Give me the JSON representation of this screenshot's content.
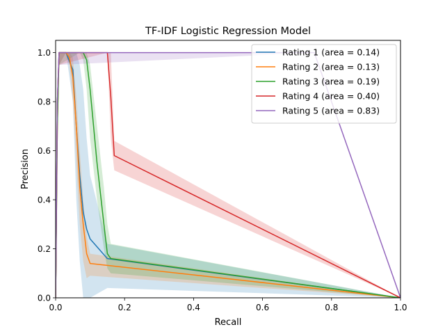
{
  "chart_data": {
    "type": "line",
    "title": "TF-IDF Logistic Regression Model",
    "xlabel": "Recall",
    "ylabel": "Precision",
    "xlim": [
      0.0,
      1.0
    ],
    "ylim": [
      0.0,
      1.05
    ],
    "xticks": [
      "0.0",
      "0.2",
      "0.4",
      "0.6",
      "0.8",
      "1.0"
    ],
    "yticks": [
      "0.0",
      "0.2",
      "0.4",
      "0.6",
      "0.8",
      "1.0"
    ],
    "grid": false,
    "legend_position": "top-right",
    "series": [
      {
        "name": "Rating 1 (area = 0.14)",
        "color": "#1f77b4",
        "x": [
          0.0,
          0.005,
          0.01,
          0.03,
          0.05,
          0.06,
          0.07,
          0.08,
          0.09,
          0.1,
          0.15,
          1.0
        ],
        "y": [
          0.0,
          0.8,
          1.0,
          1.0,
          0.93,
          0.7,
          0.5,
          0.35,
          0.28,
          0.24,
          0.16,
          0.0
        ],
        "band_upper": [
          0.0,
          0.85,
          1.0,
          1.0,
          1.0,
          1.0,
          0.95,
          0.85,
          0.65,
          0.5,
          0.22,
          0.0
        ],
        "band_lower": [
          0.0,
          0.6,
          0.95,
          1.0,
          0.8,
          0.4,
          0.15,
          0.0,
          0.0,
          0.0,
          0.04,
          0.0
        ]
      },
      {
        "name": "Rating 2 (area = 0.13)",
        "color": "#ff7f0e",
        "x": [
          0.0,
          0.005,
          0.01,
          0.03,
          0.04,
          0.05,
          0.06,
          0.07,
          0.08,
          0.09,
          0.1,
          1.0
        ],
        "y": [
          0.0,
          0.7,
          1.0,
          1.0,
          0.98,
          0.9,
          0.7,
          0.45,
          0.3,
          0.18,
          0.14,
          0.0
        ],
        "band_upper": [
          0.0,
          0.75,
          1.0,
          1.0,
          1.0,
          0.98,
          0.82,
          0.6,
          0.4,
          0.25,
          0.18,
          0.0
        ],
        "band_lower": [
          0.0,
          0.6,
          0.95,
          1.0,
          0.95,
          0.8,
          0.55,
          0.3,
          0.15,
          0.08,
          0.09,
          0.0
        ]
      },
      {
        "name": "Rating 3 (area = 0.19)",
        "color": "#2ca02c",
        "x": [
          0.0,
          0.005,
          0.01,
          0.07,
          0.08,
          0.09,
          0.1,
          0.12,
          0.14,
          0.15,
          0.16,
          1.0
        ],
        "y": [
          0.0,
          0.7,
          1.0,
          1.0,
          1.0,
          0.97,
          0.85,
          0.55,
          0.3,
          0.18,
          0.16,
          0.0
        ],
        "band_upper": [
          0.0,
          0.75,
          1.0,
          1.0,
          1.0,
          1.0,
          0.95,
          0.7,
          0.45,
          0.3,
          0.22,
          0.0
        ],
        "band_lower": [
          0.0,
          0.6,
          0.95,
          1.0,
          0.97,
          0.85,
          0.65,
          0.4,
          0.2,
          0.12,
          0.1,
          0.0
        ]
      },
      {
        "name": "Rating 4 (area = 0.40)",
        "color": "#d62728",
        "x": [
          0.0,
          0.005,
          0.01,
          0.15,
          0.16,
          0.17,
          1.0
        ],
        "y": [
          0.0,
          0.8,
          1.0,
          1.0,
          0.82,
          0.58,
          0.0
        ],
        "band_upper": [
          0.0,
          0.85,
          1.0,
          1.0,
          1.0,
          0.64,
          0.0
        ],
        "band_lower": [
          0.0,
          0.7,
          0.95,
          1.0,
          0.65,
          0.52,
          0.0
        ]
      },
      {
        "name": "Rating 5 (area = 0.83)",
        "color": "#9467bd",
        "x": [
          0.0,
          0.005,
          0.01,
          0.75,
          1.0
        ],
        "y": [
          0.0,
          0.8,
          1.0,
          1.0,
          0.0
        ],
        "band_upper": [
          0.0,
          0.85,
          1.0,
          1.0,
          0.0
        ],
        "band_lower": [
          0.0,
          0.7,
          0.95,
          1.0,
          0.0
        ]
      }
    ]
  }
}
